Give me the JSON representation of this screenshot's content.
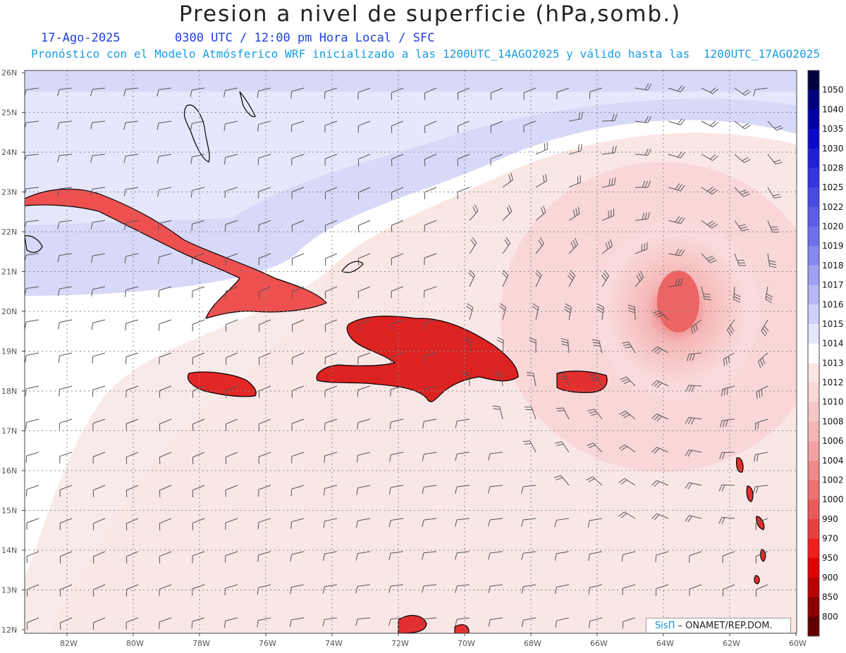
{
  "title": "Presion a nivel de superficie (hPa,somb.)",
  "header": {
    "date": "17-Ago-2025",
    "time_info": "0300 UTC / 12:00 pm Hora Local / SFC",
    "model_info": "Pronóstico con el Modelo Atmósferico WRF inicializado a las 1200UTC_14AGO2025 y válido hasta las  1200UTC_17AGO2025"
  },
  "map": {
    "lat_labels": [
      "26N",
      "25N",
      "24N",
      "23N",
      "22N",
      "21N",
      "20N",
      "19N",
      "18N",
      "17N",
      "16N",
      "15N",
      "14N",
      "13N",
      "12N"
    ],
    "lon_labels": [
      "82W",
      "80W",
      "78W",
      "76W",
      "74W",
      "72W",
      "70W",
      "68W",
      "66W",
      "64W",
      "62W",
      "60W"
    ],
    "grid": "dotted",
    "low_center": {
      "lon": -63.5,
      "lat": 20.3,
      "description": "low pressure center northeast of Puerto Rico"
    }
  },
  "colorbar": {
    "labels": [
      "1050",
      "1040",
      "1035",
      "1030",
      "1028",
      "1025",
      "1022",
      "1020",
      "1019",
      "1018",
      "1017",
      "1016",
      "1015",
      "1014",
      "1013",
      "1012",
      "1010",
      "1008",
      "1006",
      "1004",
      "1002",
      "1000",
      "990",
      "970",
      "950",
      "900",
      "850",
      "800"
    ],
    "colors": [
      "#00003f",
      "#00007f",
      "#0000a8",
      "#0a0ac8",
      "#1f1fd8",
      "#3434e0",
      "#4848e4",
      "#5c5ce8",
      "#7070ec",
      "#8888f0",
      "#a0a0f2",
      "#b8b8f6",
      "#d0d0fa",
      "#e6e6fc",
      "#ffffff",
      "#fbe6e6",
      "#f9d7d7",
      "#f7c7c7",
      "#f5b6b6",
      "#f2a2a2",
      "#ef8b8b",
      "#ec7272",
      "#ea5a5a",
      "#e84040",
      "#f01d1d",
      "#e00000",
      "#b80000",
      "#8a0000",
      "#600000"
    ]
  },
  "credit": {
    "logo": "SisΠ",
    "text": " – ONAMET/REP.DOM."
  }
}
